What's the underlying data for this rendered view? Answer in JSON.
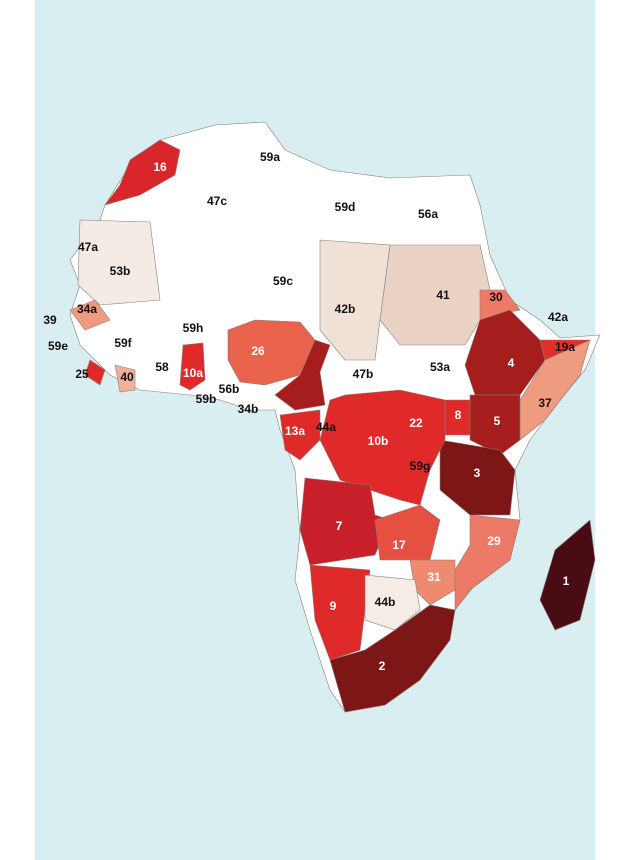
{
  "map": {
    "labels": [
      "16",
      "59a",
      "47c",
      "59d",
      "56a",
      "47a",
      "53b",
      "59c",
      "42b",
      "41",
      "30",
      "42a",
      "34a",
      "39",
      "59e",
      "59f",
      "59h",
      "26",
      "19a",
      "4",
      "25",
      "40",
      "58",
      "10a",
      "53a",
      "47b",
      "59b",
      "56b",
      "37",
      "34b",
      "8",
      "5",
      "22",
      "44a",
      "13a",
      "10b",
      "59g",
      "3",
      "7",
      "17",
      "29",
      "1",
      "31",
      "44b",
      "9",
      "2"
    ]
  }
}
